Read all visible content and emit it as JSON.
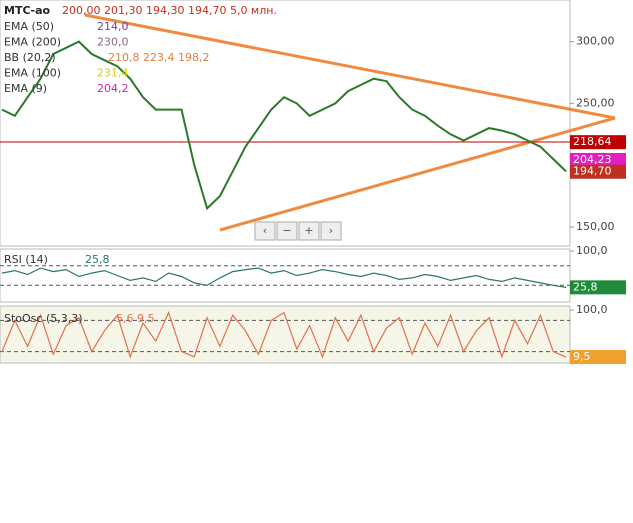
{
  "chart_data": [
    {
      "type": "candlestick-panel",
      "title": "МТС-ао",
      "quote": "200,00 201,30 194,30 194,70 5,0 млн.",
      "indicators": [
        {
          "name": "EMA (50)",
          "value": "214,0",
          "color": "#7b3f8c"
        },
        {
          "name": "EMA (200)",
          "value": "230,0",
          "color": "#8a6a8a"
        },
        {
          "name": "BB (20,2)",
          "value": "210,8 223,4 198,2",
          "color": "#e08040"
        },
        {
          "name": "EMA (100)",
          "value": "231,4",
          "color": "#d8d000"
        },
        {
          "name": "EMA (9)",
          "value": "204,2",
          "color": "#d020c0"
        }
      ],
      "series": [
        {
          "name": "close",
          "color": "#2a7a2a",
          "values": [
            245,
            240,
            255,
            270,
            290,
            295,
            300,
            290,
            285,
            280,
            270,
            255,
            245,
            245,
            245,
            200,
            165,
            175,
            195,
            215,
            230,
            245,
            255,
            250,
            240,
            245,
            250,
            260,
            265,
            270,
            268,
            255,
            245,
            240,
            232,
            225,
            220,
            225,
            230,
            228,
            225,
            220,
            215,
            205,
            195
          ]
        }
      ],
      "ylim": [
        134.6,
        333.7
      ],
      "yticks": [
        {
          "value": 300,
          "label": "300,00"
        },
        {
          "value": 250,
          "label": "250,00"
        },
        {
          "value": 150,
          "label": "150,00"
        }
      ],
      "price_markers": [
        {
          "value": 218.64,
          "label": "218,64",
          "color": "#c00000"
        },
        {
          "value": 204.23,
          "label": "204,23",
          "color": "#e020c0"
        },
        {
          "value": 194.7,
          "label": "194,70",
          "color": "#c03020"
        }
      ],
      "nav_buttons": [
        "‹",
        "−",
        "+",
        "›"
      ]
    },
    {
      "type": "line-panel",
      "title": "RSI (14)",
      "value": "25,8",
      "series": [
        {
          "name": "RSI",
          "color": "#2a7a5a",
          "values": [
            55,
            60,
            52,
            65,
            58,
            62,
            48,
            55,
            60,
            50,
            40,
            45,
            38,
            55,
            48,
            35,
            30,
            45,
            58,
            62,
            65,
            55,
            60,
            50,
            55,
            62,
            58,
            52,
            48,
            55,
            50,
            42,
            45,
            52,
            48,
            40,
            45,
            50,
            42,
            38,
            45,
            40,
            35,
            30,
            25.8
          ]
        }
      ],
      "ylim": [
        0,
        100
      ],
      "yticks": [
        {
          "value": 100,
          "label": "100,0"
        }
      ],
      "levels": [
        70,
        30
      ],
      "marker": {
        "value": 25.8,
        "label": "25,8",
        "color": "#1f8a3a"
      }
    },
    {
      "type": "line-panel",
      "title": "StoOsc (5,3,3)",
      "value": "5,6 9,5",
      "series": [
        {
          "name": "StoOsc",
          "color": "#e07050",
          "values": [
            20,
            80,
            30,
            90,
            15,
            70,
            85,
            20,
            60,
            90,
            10,
            75,
            40,
            95,
            20,
            10,
            85,
            30,
            90,
            60,
            15,
            80,
            95,
            25,
            70,
            10,
            85,
            40,
            90,
            20,
            65,
            85,
            15,
            75,
            30,
            90,
            20,
            60,
            85,
            10,
            80,
            35,
            90,
            20,
            9.5
          ]
        }
      ],
      "ylim": [
        0,
        100
      ],
      "yticks": [
        {
          "value": 100,
          "label": "100,0"
        }
      ],
      "levels": [
        80,
        20
      ],
      "marker": {
        "value": 9.5,
        "label": "9,5",
        "color": "#f0a030"
      }
    }
  ]
}
